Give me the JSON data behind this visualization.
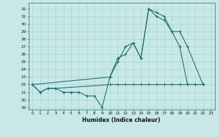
{
  "bg_color": "#c8e8e8",
  "line_color": "#1e6b6b",
  "xlabel": "Humidex (Indice chaleur)",
  "xlim": [
    -0.5,
    23.5
  ],
  "ylim": [
    18.7,
    32.8
  ],
  "xticks": [
    0,
    1,
    2,
    3,
    4,
    5,
    6,
    7,
    8,
    9,
    10,
    11,
    12,
    13,
    14,
    15,
    16,
    17,
    18,
    19,
    20,
    21,
    22,
    23
  ],
  "yticks": [
    19,
    20,
    21,
    22,
    23,
    24,
    25,
    26,
    27,
    28,
    29,
    30,
    31,
    32
  ],
  "series1_x": [
    0,
    1,
    2,
    3,
    4,
    5,
    6,
    7,
    8,
    9,
    10,
    11,
    12,
    13,
    14,
    15,
    16,
    17,
    18,
    19,
    20,
    21,
    22
  ],
  "series1_y": [
    22,
    21,
    21.5,
    21.5,
    21,
    21,
    21,
    20.5,
    20.5,
    19,
    23,
    25,
    27,
    27.5,
    25.5,
    32,
    31.5,
    31,
    29,
    27,
    22,
    22,
    22
  ],
  "series2_x": [
    0,
    1,
    2,
    3,
    10,
    11,
    12,
    13,
    14,
    15,
    16,
    17,
    18,
    19,
    20,
    21,
    22
  ],
  "series2_y": [
    22,
    21,
    21.5,
    21.5,
    22,
    22,
    22,
    22,
    22,
    22,
    22,
    22,
    22,
    22,
    22,
    22,
    22
  ],
  "series3_x": [
    0,
    10,
    11,
    12,
    13,
    14,
    15,
    16,
    17,
    18,
    19,
    20,
    22
  ],
  "series3_y": [
    22,
    23,
    25.5,
    26,
    27.5,
    25.5,
    32,
    31,
    30.5,
    29,
    29,
    27,
    22
  ]
}
